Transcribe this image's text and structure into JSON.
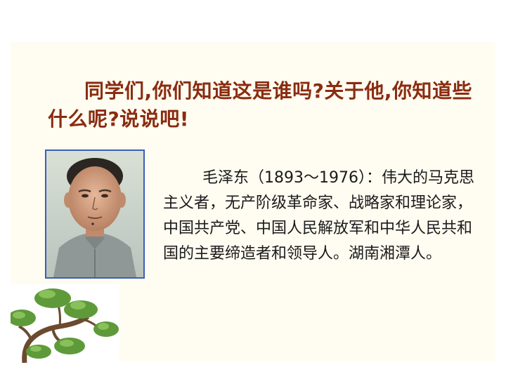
{
  "question": "同学们,你们知道这是谁吗?关于他,你知道些什么呢?说说吧!",
  "bio": "毛泽东（1893～1976）：伟大的马克思主义者，无产阶级革命家、战略家和理论家，中国共产党、中国人民解放军和中华人民共和国的主要缔造者和领导人。湖南湘潭人。",
  "colors": {
    "title": "#8a2c10",
    "frame": "#3a5fb8",
    "slide_bg": "#fffcf1"
  }
}
